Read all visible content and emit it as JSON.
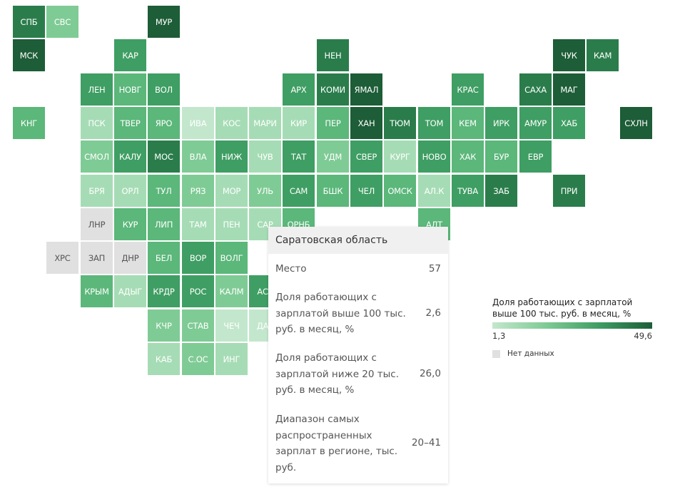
{
  "regions": [
    {
      "code": "СПБ",
      "row": 0,
      "col": 0,
      "shade": 5
    },
    {
      "code": "СВС",
      "row": 0,
      "col": 1,
      "shade": 2
    },
    {
      "code": "МУР",
      "row": 0,
      "col": 4,
      "shade": 6
    },
    {
      "code": "МСК",
      "row": 1,
      "col": 0,
      "shade": 6
    },
    {
      "code": "КАР",
      "row": 1,
      "col": 3,
      "shade": 4
    },
    {
      "code": "НЕН",
      "row": 1,
      "col": 9,
      "shade": 5
    },
    {
      "code": "ЧУК",
      "row": 1,
      "col": 16,
      "shade": 6
    },
    {
      "code": "КАМ",
      "row": 1,
      "col": 17,
      "shade": 5
    },
    {
      "code": "ЛЕН",
      "row": 2,
      "col": 2,
      "shade": 4
    },
    {
      "code": "НОВГ",
      "row": 2,
      "col": 3,
      "shade": 3
    },
    {
      "code": "ВОЛ",
      "row": 2,
      "col": 4,
      "shade": 4
    },
    {
      "code": "АРХ",
      "row": 2,
      "col": 8,
      "shade": 4
    },
    {
      "code": "КОМИ",
      "row": 2,
      "col": 9,
      "shade": 5
    },
    {
      "code": "ЯМАЛ",
      "row": 2,
      "col": 10,
      "shade": 6
    },
    {
      "code": "КРАС",
      "row": 2,
      "col": 13,
      "shade": 4
    },
    {
      "code": "САХА",
      "row": 2,
      "col": 15,
      "shade": 5
    },
    {
      "code": "МАГ",
      "row": 2,
      "col": 16,
      "shade": 6
    },
    {
      "code": "КНГ",
      "row": 3,
      "col": 0,
      "shade": 3
    },
    {
      "code": "ПСК",
      "row": 3,
      "col": 2,
      "shade": 1
    },
    {
      "code": "ТВЕР",
      "row": 3,
      "col": 3,
      "shade": 3
    },
    {
      "code": "ЯРО",
      "row": 3,
      "col": 4,
      "shade": 3
    },
    {
      "code": "ИВА",
      "row": 3,
      "col": 5,
      "shade": 0
    },
    {
      "code": "КОС",
      "row": 3,
      "col": 6,
      "shade": 1
    },
    {
      "code": "МАРИ",
      "row": 3,
      "col": 7,
      "shade": 1
    },
    {
      "code": "КИР",
      "row": 3,
      "col": 8,
      "shade": 1
    },
    {
      "code": "ПЕР",
      "row": 3,
      "col": 9,
      "shade": 3
    },
    {
      "code": "ХАН",
      "row": 3,
      "col": 10,
      "shade": 6
    },
    {
      "code": "ТЮМ",
      "row": 3,
      "col": 11,
      "shade": 5
    },
    {
      "code": "ТОМ",
      "row": 3,
      "col": 12,
      "shade": 4
    },
    {
      "code": "КЕМ",
      "row": 3,
      "col": 13,
      "shade": 3
    },
    {
      "code": "ИРК",
      "row": 3,
      "col": 14,
      "shade": 4
    },
    {
      "code": "АМУР",
      "row": 3,
      "col": 15,
      "shade": 4
    },
    {
      "code": "ХАБ",
      "row": 3,
      "col": 16,
      "shade": 4
    },
    {
      "code": "СХЛН",
      "row": 3,
      "col": 18,
      "shade": 6
    },
    {
      "code": "СМОЛ",
      "row": 4,
      "col": 2,
      "shade": 2
    },
    {
      "code": "КАЛУ",
      "row": 4,
      "col": 3,
      "shade": 4
    },
    {
      "code": "МОС",
      "row": 4,
      "col": 4,
      "shade": 5
    },
    {
      "code": "ВЛА",
      "row": 4,
      "col": 5,
      "shade": 2
    },
    {
      "code": "НИЖ",
      "row": 4,
      "col": 6,
      "shade": 4
    },
    {
      "code": "ЧУВ",
      "row": 4,
      "col": 7,
      "shade": 1
    },
    {
      "code": "ТАТ",
      "row": 4,
      "col": 8,
      "shade": 4
    },
    {
      "code": "УДМ",
      "row": 4,
      "col": 9,
      "shade": 2
    },
    {
      "code": "СВЕР",
      "row": 4,
      "col": 10,
      "shade": 4
    },
    {
      "code": "КУРГ",
      "row": 4,
      "col": 11,
      "shade": 1
    },
    {
      "code": "НОВО",
      "row": 4,
      "col": 12,
      "shade": 4
    },
    {
      "code": "ХАК",
      "row": 4,
      "col": 13,
      "shade": 3
    },
    {
      "code": "БУР",
      "row": 4,
      "col": 14,
      "shade": 3
    },
    {
      "code": "ЕВР",
      "row": 4,
      "col": 15,
      "shade": 4
    },
    {
      "code": "БРЯ",
      "row": 5,
      "col": 2,
      "shade": 1
    },
    {
      "code": "ОРЛ",
      "row": 5,
      "col": 3,
      "shade": 1
    },
    {
      "code": "ТУЛ",
      "row": 5,
      "col": 4,
      "shade": 3
    },
    {
      "code": "РЯЗ",
      "row": 5,
      "col": 5,
      "shade": 2
    },
    {
      "code": "МОР",
      "row": 5,
      "col": 6,
      "shade": 1
    },
    {
      "code": "УЛЬ",
      "row": 5,
      "col": 7,
      "shade": 2
    },
    {
      "code": "САМ",
      "row": 5,
      "col": 8,
      "shade": 4
    },
    {
      "code": "БШК",
      "row": 5,
      "col": 9,
      "shade": 3
    },
    {
      "code": "ЧЕЛ",
      "row": 5,
      "col": 10,
      "shade": 4
    },
    {
      "code": "ОМСК",
      "row": 5,
      "col": 11,
      "shade": 3
    },
    {
      "code": "АЛ.К",
      "row": 5,
      "col": 12,
      "shade": 1
    },
    {
      "code": "ТУВА",
      "row": 5,
      "col": 13,
      "shade": 4
    },
    {
      "code": "ЗАБ",
      "row": 5,
      "col": 14,
      "shade": 5
    },
    {
      "code": "ПРИ",
      "row": 5,
      "col": 16,
      "shade": 5
    },
    {
      "code": "ЛНР",
      "row": 6,
      "col": 2,
      "shade": -1
    },
    {
      "code": "КУР",
      "row": 6,
      "col": 3,
      "shade": 3
    },
    {
      "code": "ЛИП",
      "row": 6,
      "col": 4,
      "shade": 3
    },
    {
      "code": "ТАМ",
      "row": 6,
      "col": 5,
      "shade": 1
    },
    {
      "code": "ПЕН",
      "row": 6,
      "col": 6,
      "shade": 1
    },
    {
      "code": "САР",
      "row": 6,
      "col": 7,
      "shade": 1
    },
    {
      "code": "ОРНБ",
      "row": 6,
      "col": 8,
      "shade": 3
    },
    {
      "code": "АЛТ",
      "row": 6,
      "col": 12,
      "shade": 3
    },
    {
      "code": "ХРС",
      "row": 7,
      "col": 1,
      "shade": -1
    },
    {
      "code": "ЗАП",
      "row": 7,
      "col": 2,
      "shade": -1
    },
    {
      "code": "ДНР",
      "row": 7,
      "col": 3,
      "shade": -1
    },
    {
      "code": "БЕЛ",
      "row": 7,
      "col": 4,
      "shade": 3
    },
    {
      "code": "ВОР",
      "row": 7,
      "col": 5,
      "shade": 4
    },
    {
      "code": "ВОЛГ",
      "row": 7,
      "col": 6,
      "shade": 3
    },
    {
      "code": "КРЫМ",
      "row": 8,
      "col": 2,
      "shade": 3
    },
    {
      "code": "АДЫГ",
      "row": 8,
      "col": 3,
      "shade": 1
    },
    {
      "code": "КРДР",
      "row": 8,
      "col": 4,
      "shade": 4
    },
    {
      "code": "РОС",
      "row": 8,
      "col": 5,
      "shade": 4
    },
    {
      "code": "КАЛМ",
      "row": 8,
      "col": 6,
      "shade": 2
    },
    {
      "code": "АСТ",
      "row": 8,
      "col": 7,
      "shade": 4
    },
    {
      "code": "КЧР",
      "row": 9,
      "col": 4,
      "shade": 2
    },
    {
      "code": "СТАВ",
      "row": 9,
      "col": 5,
      "shade": 2
    },
    {
      "code": "ЧЕЧ",
      "row": 9,
      "col": 6,
      "shade": 0
    },
    {
      "code": "ДАГ",
      "row": 9,
      "col": 7,
      "shade": 0
    },
    {
      "code": "КАБ",
      "row": 10,
      "col": 4,
      "shade": 1
    },
    {
      "code": "С.ОС",
      "row": 10,
      "col": 5,
      "shade": 2
    },
    {
      "code": "ИНГ",
      "row": 10,
      "col": 6,
      "shade": 1
    }
  ],
  "tooltip": {
    "title": "Саратовская область",
    "rows": [
      {
        "label": "Место",
        "value": "57"
      },
      {
        "label": "Доля работающих с зарплатой выше 100 тыс. руб. в месяц, %",
        "value": "2,6"
      },
      {
        "label": "Доля работающих с зарплатой ниже 20 тыс. руб. в месяц, %",
        "value": "26,0"
      },
      {
        "label": "Диапазон самых распространенных зарплат в регионе, тыс. руб.",
        "value": "20–41"
      }
    ]
  },
  "legend": {
    "title": "Доля работающих с зарплатой выше 100 тыс. руб. в месяц, %",
    "min": "1,3",
    "max": "49,6",
    "nodata_label": "Нет данных",
    "colors": {
      "low": "#c3e7cd",
      "high": "#1d5d37",
      "nodata": "#e0e0e0"
    }
  }
}
